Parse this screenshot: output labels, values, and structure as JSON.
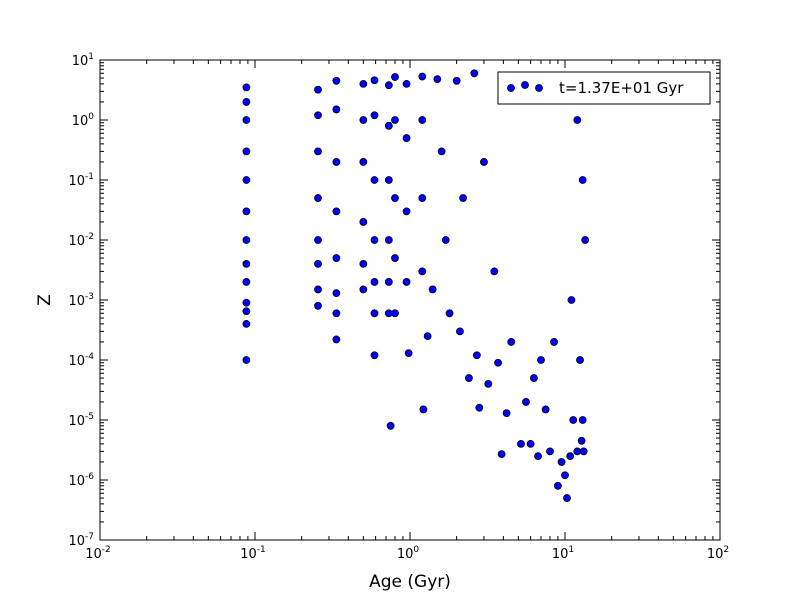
{
  "chart_data": {
    "type": "scatter",
    "title": "",
    "xlabel": "Age (Gyr)",
    "ylabel": "Z",
    "xscale": "log",
    "yscale": "log",
    "xlim": [
      0.01,
      100
    ],
    "ylim": [
      1e-07,
      10
    ],
    "x_ticks": [
      {
        "value": 0.01,
        "base": "10",
        "exp": "-2"
      },
      {
        "value": 0.1,
        "base": "10",
        "exp": "-1"
      },
      {
        "value": 1,
        "base": "10",
        "exp": "0"
      },
      {
        "value": 10,
        "base": "10",
        "exp": "1"
      },
      {
        "value": 100,
        "base": "10",
        "exp": "2"
      }
    ],
    "y_ticks": [
      {
        "value": 1e-07,
        "base": "10",
        "exp": "-7"
      },
      {
        "value": 1e-06,
        "base": "10",
        "exp": "-6"
      },
      {
        "value": 1e-05,
        "base": "10",
        "exp": "-5"
      },
      {
        "value": 0.0001,
        "base": "10",
        "exp": "-4"
      },
      {
        "value": 0.001,
        "base": "10",
        "exp": "-3"
      },
      {
        "value": 0.01,
        "base": "10",
        "exp": "-2"
      },
      {
        "value": 0.1,
        "base": "10",
        "exp": "-1"
      },
      {
        "value": 1,
        "base": "10",
        "exp": "0"
      },
      {
        "value": 10,
        "base": "10",
        "exp": "1"
      }
    ],
    "grid": false,
    "legend": {
      "placement": "top-right",
      "entries": [
        "t=1.37E+01 Gyr"
      ]
    },
    "marker_color": "#0000ff",
    "marker_edge_color": "#000000",
    "series": [
      {
        "name": "t=1.37E+01 Gyr",
        "points": [
          {
            "x": 0.088,
            "y": 3.5
          },
          {
            "x": 0.088,
            "y": 2.0
          },
          {
            "x": 0.088,
            "y": 1.0
          },
          {
            "x": 0.088,
            "y": 0.3
          },
          {
            "x": 0.088,
            "y": 0.1
          },
          {
            "x": 0.088,
            "y": 0.03
          },
          {
            "x": 0.088,
            "y": 0.01
          },
          {
            "x": 0.088,
            "y": 0.004
          },
          {
            "x": 0.088,
            "y": 0.002
          },
          {
            "x": 0.088,
            "y": 0.0009
          },
          {
            "x": 0.088,
            "y": 0.00065
          },
          {
            "x": 0.088,
            "y": 0.0004
          },
          {
            "x": 0.088,
            "y": 0.0001
          },
          {
            "x": 0.255,
            "y": 3.2
          },
          {
            "x": 0.255,
            "y": 1.2
          },
          {
            "x": 0.255,
            "y": 0.3
          },
          {
            "x": 0.255,
            "y": 0.05
          },
          {
            "x": 0.255,
            "y": 0.01
          },
          {
            "x": 0.255,
            "y": 0.004
          },
          {
            "x": 0.255,
            "y": 0.0015
          },
          {
            "x": 0.255,
            "y": 0.0008
          },
          {
            "x": 0.335,
            "y": 4.5
          },
          {
            "x": 0.335,
            "y": 1.5
          },
          {
            "x": 0.335,
            "y": 0.2
          },
          {
            "x": 0.335,
            "y": 0.03
          },
          {
            "x": 0.335,
            "y": 0.005
          },
          {
            "x": 0.335,
            "y": 0.0013
          },
          {
            "x": 0.335,
            "y": 0.0006
          },
          {
            "x": 0.335,
            "y": 0.00022
          },
          {
            "x": 0.5,
            "y": 4.0
          },
          {
            "x": 0.5,
            "y": 1.0
          },
          {
            "x": 0.5,
            "y": 0.2
          },
          {
            "x": 0.5,
            "y": 0.02
          },
          {
            "x": 0.5,
            "y": 0.004
          },
          {
            "x": 0.5,
            "y": 0.0015
          },
          {
            "x": 0.59,
            "y": 4.6
          },
          {
            "x": 0.59,
            "y": 1.2
          },
          {
            "x": 0.59,
            "y": 0.1
          },
          {
            "x": 0.59,
            "y": 0.01
          },
          {
            "x": 0.59,
            "y": 0.002
          },
          {
            "x": 0.59,
            "y": 0.0006
          },
          {
            "x": 0.59,
            "y": 0.00012
          },
          {
            "x": 0.73,
            "y": 3.8
          },
          {
            "x": 0.73,
            "y": 0.8
          },
          {
            "x": 0.73,
            "y": 0.1
          },
          {
            "x": 0.73,
            "y": 0.01
          },
          {
            "x": 0.73,
            "y": 0.002
          },
          {
            "x": 0.73,
            "y": 0.0006
          },
          {
            "x": 0.75,
            "y": 8e-06
          },
          {
            "x": 0.8,
            "y": 5.2
          },
          {
            "x": 0.8,
            "y": 1.0
          },
          {
            "x": 0.8,
            "y": 0.05
          },
          {
            "x": 0.8,
            "y": 0.005
          },
          {
            "x": 0.8,
            "y": 0.0006
          },
          {
            "x": 0.95,
            "y": 4.0
          },
          {
            "x": 0.95,
            "y": 0.5
          },
          {
            "x": 0.95,
            "y": 0.03
          },
          {
            "x": 0.95,
            "y": 0.002
          },
          {
            "x": 0.98,
            "y": 0.00013
          },
          {
            "x": 1.2,
            "y": 5.3
          },
          {
            "x": 1.2,
            "y": 1.0
          },
          {
            "x": 1.2,
            "y": 0.05
          },
          {
            "x": 1.2,
            "y": 0.003
          },
          {
            "x": 1.22,
            "y": 1.5e-05
          },
          {
            "x": 1.3,
            "y": 0.00025
          },
          {
            "x": 1.4,
            "y": 0.0015
          },
          {
            "x": 1.5,
            "y": 4.8
          },
          {
            "x": 1.6,
            "y": 0.3
          },
          {
            "x": 1.7,
            "y": 0.01
          },
          {
            "x": 1.8,
            "y": 0.0006
          },
          {
            "x": 2.0,
            "y": 4.5
          },
          {
            "x": 2.1,
            "y": 0.0003
          },
          {
            "x": 2.2,
            "y": 0.05
          },
          {
            "x": 2.4,
            "y": 5e-05
          },
          {
            "x": 2.6,
            "y": 6.0
          },
          {
            "x": 2.7,
            "y": 0.00012
          },
          {
            "x": 2.8,
            "y": 1.6e-05
          },
          {
            "x": 3.0,
            "y": 0.2
          },
          {
            "x": 3.2,
            "y": 4e-05
          },
          {
            "x": 3.5,
            "y": 0.003
          },
          {
            "x": 3.7,
            "y": 9e-05
          },
          {
            "x": 3.9,
            "y": 2.7e-06
          },
          {
            "x": 4.2,
            "y": 1.3e-05
          },
          {
            "x": 4.5,
            "y": 0.0002
          },
          {
            "x": 5.2,
            "y": 4e-06
          },
          {
            "x": 5.6,
            "y": 2e-05
          },
          {
            "x": 6.0,
            "y": 4e-06
          },
          {
            "x": 6.3,
            "y": 5e-05
          },
          {
            "x": 6.7,
            "y": 2.5e-06
          },
          {
            "x": 7.0,
            "y": 0.0001
          },
          {
            "x": 7.5,
            "y": 1.5e-05
          },
          {
            "x": 8.0,
            "y": 3e-06
          },
          {
            "x": 8.5,
            "y": 0.0002
          },
          {
            "x": 9.0,
            "y": 8e-07
          },
          {
            "x": 9.5,
            "y": 2e-06
          },
          {
            "x": 10.0,
            "y": 1.2e-06
          },
          {
            "x": 10.3,
            "y": 5e-07
          },
          {
            "x": 10.8,
            "y": 2.5e-06
          },
          {
            "x": 11.3,
            "y": 1e-05
          },
          {
            "x": 12.0,
            "y": 3e-06
          },
          {
            "x": 12.8,
            "y": 4.5e-06
          },
          {
            "x": 13.2,
            "y": 3e-06
          },
          {
            "x": 13.0,
            "y": 1e-05
          },
          {
            "x": 12.5,
            "y": 0.0001
          },
          {
            "x": 11.0,
            "y": 0.001
          },
          {
            "x": 13.5,
            "y": 0.01
          },
          {
            "x": 13.0,
            "y": 0.1
          },
          {
            "x": 12.0,
            "y": 1.0
          },
          {
            "x": 10.0,
            "y": 3.0
          },
          {
            "x": 5.0,
            "y": 5.5
          }
        ]
      }
    ]
  }
}
